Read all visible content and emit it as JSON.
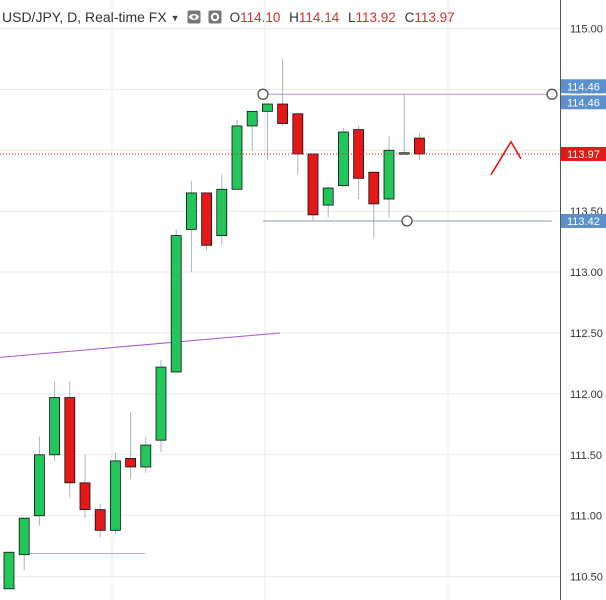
{
  "header": {
    "symbol": "USD/JPY, D, Real-time FX",
    "open_label": "O",
    "open": "114.10",
    "high_label": "H",
    "high": "114.14",
    "low_label": "L",
    "low": "113.92",
    "close_label": "C",
    "close": "113.97",
    "icons": [
      "eye-icon",
      "settings-icon"
    ]
  },
  "colors": {
    "up": "#22c65a",
    "down": "#e31919",
    "wick": "#9fb7cc",
    "axis": "#333333",
    "grid": "#e9e9e9",
    "price_line": "#e31919",
    "resistance": "#b38fd9",
    "support": "#8e98b6",
    "trendline": "#a957d1",
    "hline_low": "#7fc8d6",
    "label_blue": "#5b8fce",
    "label_red": "#e31919"
  },
  "chart_data": {
    "type": "candlestick",
    "ylim": [
      110.4,
      115.15
    ],
    "yticks": [
      "115.00",
      "114.50",
      "114.00",
      "113.50",
      "113.00",
      "112.50",
      "112.00",
      "111.50",
      "111.00",
      "110.50"
    ],
    "price_labels": [
      {
        "value": 114.46,
        "text": "114.46",
        "kind": "blue"
      },
      {
        "value": 114.46,
        "text": "114.46",
        "kind": "blue"
      },
      {
        "value": 113.97,
        "text": "113.97",
        "kind": "red"
      },
      {
        "value": 113.42,
        "text": "113.42",
        "kind": "blue"
      }
    ],
    "candles": [
      {
        "o": 110.4,
        "h": 110.7,
        "l": 110.4,
        "c": 110.7
      },
      {
        "o": 110.68,
        "h": 110.95,
        "l": 110.55,
        "c": 110.98
      },
      {
        "o": 111.0,
        "h": 111.65,
        "l": 110.92,
        "c": 111.5
      },
      {
        "o": 111.5,
        "h": 112.1,
        "l": 111.45,
        "c": 111.97
      },
      {
        "o": 111.97,
        "h": 112.1,
        "l": 111.15,
        "c": 111.27
      },
      {
        "o": 111.27,
        "h": 111.5,
        "l": 110.98,
        "c": 111.05
      },
      {
        "o": 111.05,
        "h": 111.1,
        "l": 110.82,
        "c": 110.88
      },
      {
        "o": 110.88,
        "h": 111.52,
        "l": 110.85,
        "c": 111.45
      },
      {
        "o": 111.47,
        "h": 111.85,
        "l": 111.3,
        "c": 111.4
      },
      {
        "o": 111.4,
        "h": 111.65,
        "l": 111.35,
        "c": 111.58
      },
      {
        "o": 111.62,
        "h": 112.28,
        "l": 111.52,
        "c": 112.22
      },
      {
        "o": 112.18,
        "h": 113.35,
        "l": 112.18,
        "c": 113.3
      },
      {
        "o": 113.35,
        "h": 113.75,
        "l": 113.0,
        "c": 113.65
      },
      {
        "o": 113.65,
        "h": 113.65,
        "l": 113.18,
        "c": 113.22
      },
      {
        "o": 113.3,
        "h": 113.8,
        "l": 113.22,
        "c": 113.68
      },
      {
        "o": 113.68,
        "h": 114.25,
        "l": 113.68,
        "c": 114.2
      },
      {
        "o": 114.2,
        "h": 114.3,
        "l": 114.0,
        "c": 114.32
      },
      {
        "o": 114.32,
        "h": 114.38,
        "l": 113.92,
        "c": 114.38
      },
      {
        "o": 114.38,
        "h": 114.75,
        "l": 114.2,
        "c": 114.22
      },
      {
        "o": 114.3,
        "h": 114.3,
        "l": 113.8,
        "c": 113.97
      },
      {
        "o": 113.97,
        "h": 113.97,
        "l": 113.42,
        "c": 113.47
      },
      {
        "o": 113.55,
        "h": 113.7,
        "l": 113.45,
        "c": 113.69
      },
      {
        "o": 113.71,
        "h": 114.18,
        "l": 113.7,
        "c": 114.15
      },
      {
        "o": 114.17,
        "h": 114.2,
        "l": 113.6,
        "c": 113.77
      },
      {
        "o": 113.82,
        "h": 113.82,
        "l": 113.28,
        "c": 113.56
      },
      {
        "o": 113.6,
        "h": 114.12,
        "l": 113.45,
        "c": 114.0
      },
      {
        "o": 113.97,
        "h": 114.46,
        "l": 113.97,
        "c": 113.98
      },
      {
        "o": 114.1,
        "h": 114.14,
        "l": 113.92,
        "c": 113.97
      }
    ],
    "drawings": {
      "resistance": {
        "value": 114.46
      },
      "support": {
        "value": 113.42
      },
      "trendline": {
        "from": 112.3,
        "to": 112.5
      },
      "low_hline": {
        "value": 110.69
      },
      "projection": [
        113.8,
        114.07,
        113.93
      ]
    }
  }
}
